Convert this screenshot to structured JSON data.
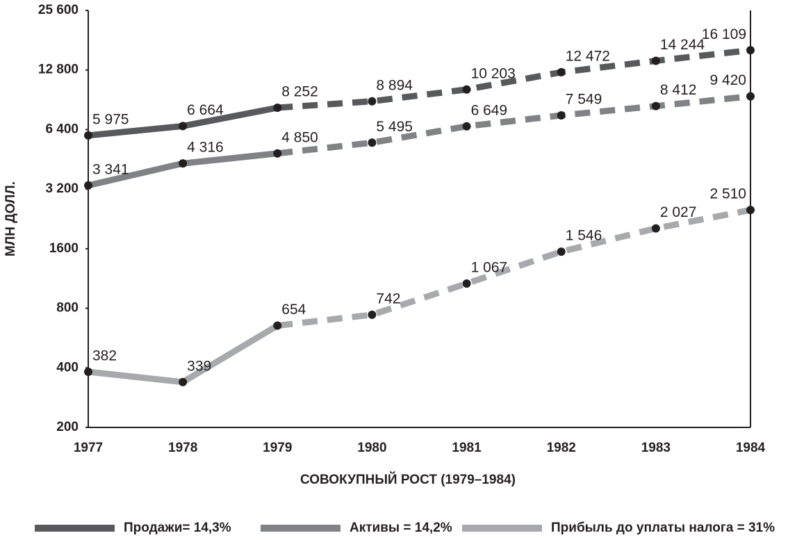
{
  "chart_data": {
    "type": "line",
    "ylabel": "МЛН ДОЛЛ.",
    "xlabel": "СОВОКУПНЫЙ РОСТ (1979–1984)",
    "categories": [
      "1977",
      "1978",
      "1979",
      "1980",
      "1981",
      "1982",
      "1983",
      "1984"
    ],
    "dashed_from": "1979",
    "log_scale": true,
    "ylim": [
      200,
      25600
    ],
    "yticks": [
      200,
      400,
      800,
      1600,
      {
        "value": 3200,
        "label": "3 200"
      },
      {
        "value": 6400,
        "label": "6 400"
      },
      {
        "value": 12800,
        "label": "12 800"
      },
      {
        "value": 25600,
        "label": "25 600"
      }
    ],
    "series": [
      {
        "name": "Продажи= 14,3%",
        "color": "#58595b",
        "values": [
          5975,
          6664,
          8252,
          8894,
          10203,
          12472,
          14244,
          16109
        ],
        "value_labels": [
          "5 975",
          "6 664",
          "8 252",
          "8 894",
          "10 203",
          "12 472",
          "14 244",
          "16 109"
        ]
      },
      {
        "name": "Активы = 14,2%",
        "color": "#808285",
        "values": [
          3341,
          4316,
          4850,
          5495,
          6649,
          7549,
          8412,
          9420
        ],
        "value_labels": [
          "3 341",
          "4 316",
          "4 850",
          "5 495",
          "6 649",
          "7 549",
          "8 412",
          "9 420"
        ]
      },
      {
        "name": "Прибыль до уплаты налога = 31%",
        "color": "#a7a9ac",
        "values": [
          382,
          339,
          654,
          742,
          1067,
          1546,
          2027,
          2510
        ],
        "value_labels": [
          "382",
          "339",
          "654",
          "742",
          "1 067",
          "1 546",
          "2 027",
          "2 510"
        ]
      }
    ]
  }
}
